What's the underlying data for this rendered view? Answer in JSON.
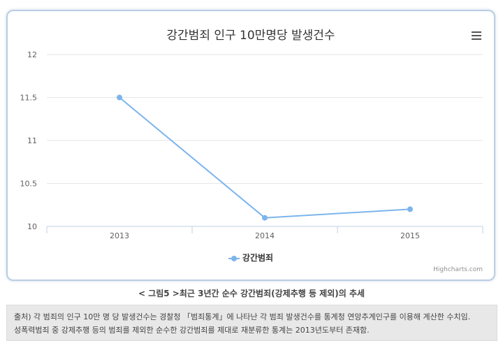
{
  "chart_data": {
    "type": "line",
    "title": "강간범죄 인구 10만명당 발생건수",
    "categories": [
      "2013",
      "2014",
      "2015"
    ],
    "series": [
      {
        "name": "강간범죄",
        "values": [
          11.5,
          10.1,
          10.2
        ],
        "color": "#7cb5ec"
      }
    ],
    "y_ticks": [
      "10",
      "10.5",
      "11",
      "11.5",
      "12"
    ],
    "ylim": [
      10,
      12
    ],
    "grid": true,
    "legend_position": "bottom-center",
    "xlabel": "",
    "ylabel": ""
  },
  "credits": "Highcharts.com",
  "menu_icon": "hamburger-menu-icon",
  "caption": "< 그림5 >최근 3년간 순수 강간범죄(강제추행 등 제외)의 추세",
  "note": {
    "line1": "출처) 각 범죄의 인구 10만 명 당 발생건수는 경찰청 「범죄통계」에 나타난 각 범죄 발생건수를 통계청 연앙추계인구를 이용해 계산한 수치임.",
    "line2": "성폭력범죄 중 강제추행 등의 범죄를 제외한 순수한 강간범죄를 제대로 재분류한 통계는 2013년도부터 존재함."
  }
}
